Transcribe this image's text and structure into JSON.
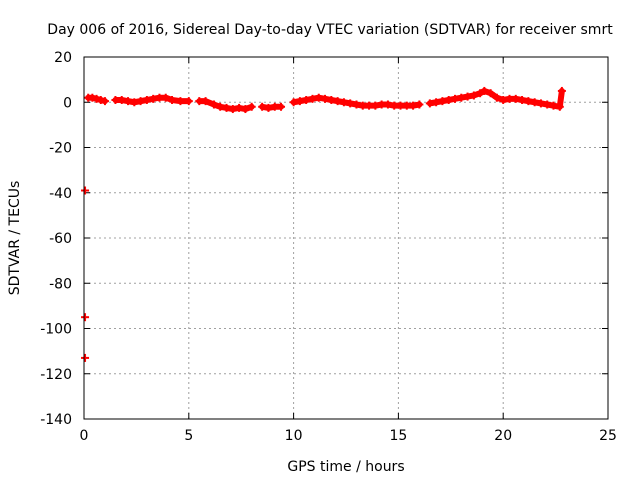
{
  "chart_data": {
    "type": "scatter",
    "title": "Day 006 of 2016, Sidereal Day-to-day VTEC variation (SDTVAR) for receiver smrt",
    "xlabel": "GPS time / hours",
    "ylabel": "SDTVAR / TECUs",
    "xlim": [
      0,
      25
    ],
    "ylim": [
      -140,
      20
    ],
    "x_ticks": [
      "0",
      "5",
      "10",
      "15",
      "20",
      "25"
    ],
    "y_ticks": [
      "20",
      "0",
      "-20",
      "-40",
      "-60",
      "-80",
      "-100",
      "-120",
      "-140"
    ],
    "grid": true,
    "marker_color": "#ff0000",
    "series": [
      {
        "marker": "plus",
        "x": [
          0.2,
          0.4,
          0.6,
          0.8,
          1.0,
          1.5,
          1.8,
          2.1,
          2.4,
          2.7,
          3.0,
          3.3,
          3.6,
          3.9,
          4.2,
          4.6,
          5.0,
          5.5,
          5.8,
          6.2,
          6.5,
          6.8,
          7.1,
          7.4,
          7.7,
          8.0,
          8.5,
          8.8,
          9.1,
          9.4,
          10.0,
          10.3,
          10.6,
          10.9,
          11.2,
          11.5,
          11.8,
          12.1,
          12.4,
          12.7,
          13.0,
          13.3,
          13.6,
          13.9,
          14.2,
          14.5,
          14.8,
          15.1,
          15.4,
          15.7,
          16.0,
          16.5,
          16.8,
          17.1,
          17.4,
          17.7,
          18.0,
          18.3,
          18.6,
          18.9,
          19.1,
          19.4,
          19.7,
          20.0,
          20.3,
          20.6,
          20.9,
          21.2,
          21.5,
          21.8,
          22.1,
          22.4,
          22.7,
          22.8,
          0.05,
          0.05,
          0.05
        ],
        "y": [
          2,
          2,
          1.5,
          1,
          0.5,
          1,
          1,
          0.5,
          0,
          0.5,
          1,
          1.5,
          2,
          2,
          1,
          0.5,
          0.5,
          0.5,
          0.5,
          -1,
          -2,
          -2.5,
          -3,
          -2.5,
          -3,
          -2,
          -2,
          -2.5,
          -2,
          -2,
          0,
          0.5,
          1,
          1.5,
          2,
          1.5,
          1,
          0.5,
          0,
          -0.5,
          -1,
          -1.5,
          -1.5,
          -1.5,
          -1,
          -1,
          -1.5,
          -1.5,
          -1.5,
          -1.5,
          -1,
          -0.5,
          0,
          0.5,
          1,
          1.5,
          2,
          2.5,
          3,
          4,
          5,
          4,
          2,
          1,
          1.5,
          1.5,
          1,
          0.5,
          0,
          -0.5,
          -1,
          -1.5,
          -2,
          5,
          -39,
          -95,
          -113
        ]
      }
    ]
  }
}
